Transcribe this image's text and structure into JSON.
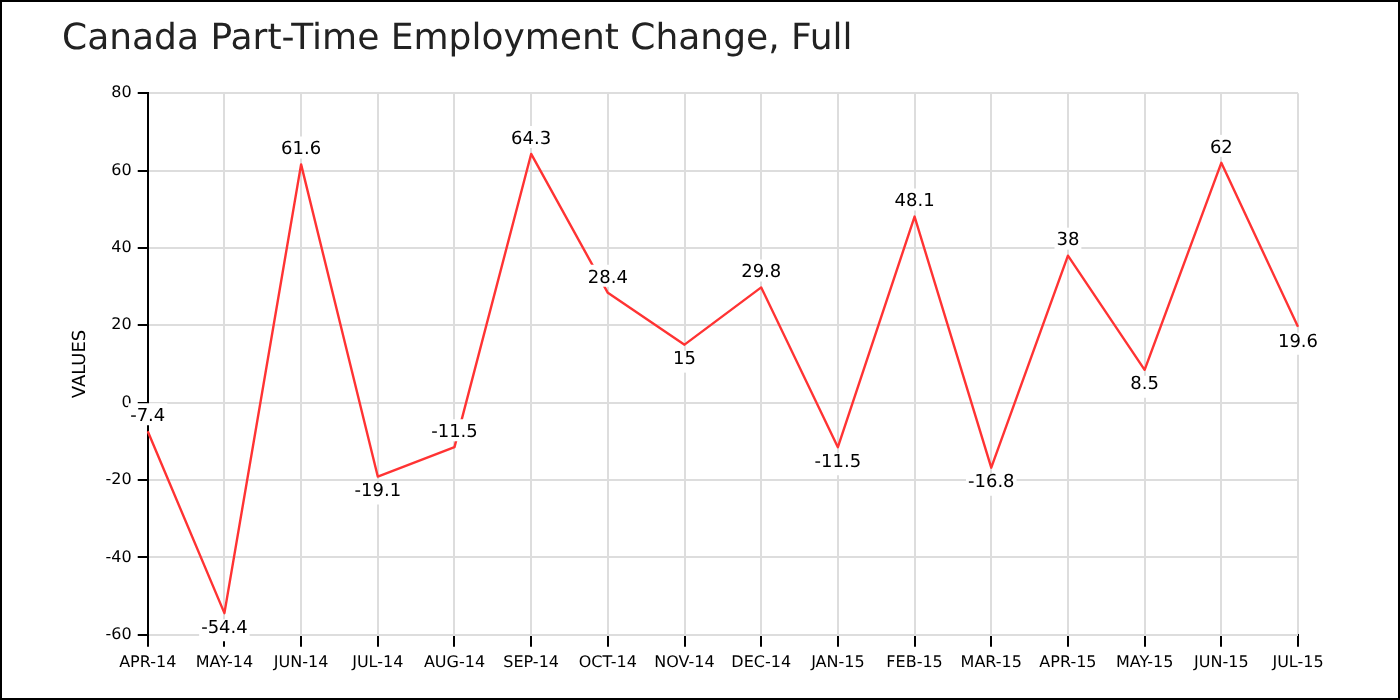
{
  "chart_data": {
    "type": "line",
    "title": "Canada Part-Time Employment Change, Full",
    "ylabel": "VALUES",
    "categories": [
      "APR-14",
      "MAY-14",
      "JUN-14",
      "JUL-14",
      "AUG-14",
      "SEP-14",
      "OCT-14",
      "NOV-14",
      "DEC-14",
      "JAN-15",
      "FEB-15",
      "MAR-15",
      "APR-15",
      "MAY-15",
      "JUN-15",
      "JUL-15"
    ],
    "series": [
      {
        "color": "#ff3333",
        "values": [
          -7.4,
          -54.4,
          61.6,
          -19.1,
          -11.5,
          64.3,
          28.4,
          15,
          29.8,
          -11.5,
          48.1,
          -16.8,
          38,
          8.5,
          62,
          19.6
        ]
      }
    ],
    "ylim": [
      -60,
      80
    ],
    "yticks": [
      -60,
      -40,
      -20,
      0,
      20,
      40,
      60,
      80
    ],
    "grid": true,
    "legend": false,
    "marker": "none",
    "line_style": "solid",
    "data_labels": true
  }
}
